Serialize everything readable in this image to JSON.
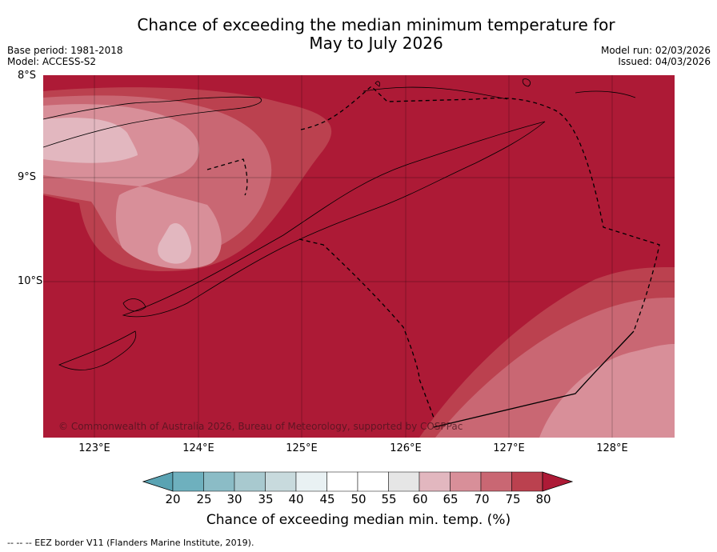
{
  "title_line1": "Chance of exceeding the median minimum temperature for",
  "title_line2": "May to July 2026",
  "base_period": "Base period: 1981-2018",
  "model": "Model: ACCESS-S2",
  "model_run": "Model run: 02/03/2026",
  "issued": "Issued: 04/03/2026",
  "lat_labels": [
    "8°S",
    "9°S",
    "10°S"
  ],
  "lon_labels": [
    "123°E",
    "124°E",
    "125°E",
    "126°E",
    "127°E",
    "128°E"
  ],
  "copyright": "© Commonwealth of Australia 2026, Bureau of Meteorology, supported by COSPPac",
  "colorbar": {
    "ticks": [
      "20",
      "25",
      "30",
      "35",
      "40",
      "45",
      "50",
      "55",
      "60",
      "65",
      "70",
      "75",
      "80"
    ],
    "colors": [
      "#5aa3b3",
      "#6eb0be",
      "#8bbcc6",
      "#a8c9cf",
      "#c8dadd",
      "#e9f1f3",
      "#ffffff",
      "#ffffff",
      "#e6e6e6",
      "#e2b7bf",
      "#d88f99",
      "#c96773",
      "#bb414f",
      "#ad1a36"
    ],
    "label": "Chance of exceeding median min. temp. (%)"
  },
  "footer": "--  --  -- EEZ border V11 (Flanders Marine Institute, 2019)."
}
